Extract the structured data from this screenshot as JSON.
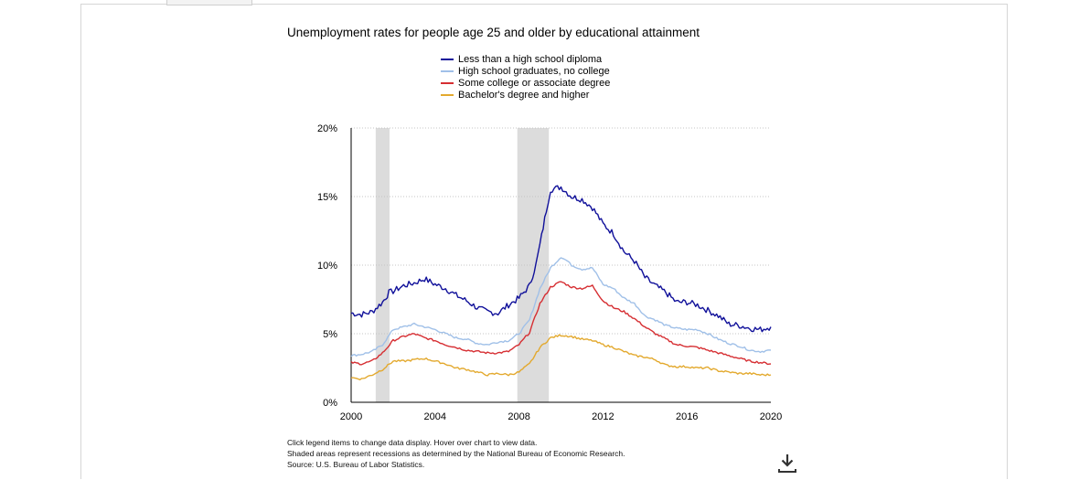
{
  "chart_data": {
    "type": "line",
    "title": "Unemployment rates for people age 25 and older by educational attainment",
    "xlabel": "",
    "ylabel": "",
    "x_ticks": [
      "2000",
      "2004",
      "2008",
      "2012",
      "2016",
      "2020"
    ],
    "y_ticks": [
      "0%",
      "5%",
      "10%",
      "15%",
      "20%"
    ],
    "xlim": [
      2000,
      2020
    ],
    "ylim": [
      0,
      20
    ],
    "grid": "horizontal dotted",
    "legend_position": "top",
    "recessions": [
      [
        2001.17,
        2001.83
      ],
      [
        2007.92,
        2009.42
      ]
    ],
    "series": [
      {
        "name": "Less than a high school diploma",
        "color": "#10109a",
        "points": [
          [
            2000,
            6.5
          ],
          [
            2000.5,
            6.4
          ],
          [
            2001,
            6.6
          ],
          [
            2001.5,
            7.3
          ],
          [
            2001.8,
            8.0
          ],
          [
            2002,
            8.1
          ],
          [
            2002.5,
            8.5
          ],
          [
            2003,
            8.7
          ],
          [
            2003.5,
            9.0
          ],
          [
            2004,
            8.6
          ],
          [
            2004.5,
            8.3
          ],
          [
            2005,
            7.8
          ],
          [
            2005.5,
            7.4
          ],
          [
            2006,
            6.9
          ],
          [
            2006.5,
            6.6
          ],
          [
            2007,
            6.5
          ],
          [
            2007.5,
            7.1
          ],
          [
            2008,
            7.6
          ],
          [
            2008.5,
            8.5
          ],
          [
            2008.8,
            10.0
          ],
          [
            2009,
            11.5
          ],
          [
            2009.3,
            14.0
          ],
          [
            2009.5,
            15.5
          ],
          [
            2010,
            15.7
          ],
          [
            2010.5,
            15.0
          ],
          [
            2011,
            14.8
          ],
          [
            2011.5,
            14.2
          ],
          [
            2012,
            13.0
          ],
          [
            2012.5,
            12.3
          ],
          [
            2013,
            11.0
          ],
          [
            2013.5,
            10.3
          ],
          [
            2014,
            9.1
          ],
          [
            2014.5,
            8.5
          ],
          [
            2015,
            8.0
          ],
          [
            2015.5,
            7.3
          ],
          [
            2016,
            7.3
          ],
          [
            2016.5,
            7.1
          ],
          [
            2017,
            6.7
          ],
          [
            2017.5,
            6.3
          ],
          [
            2018,
            5.7
          ],
          [
            2018.5,
            5.6
          ],
          [
            2019,
            5.4
          ],
          [
            2019.5,
            5.3
          ],
          [
            2020,
            5.5
          ]
        ]
      },
      {
        "name": "High school graduates, no college",
        "color": "#a0c0e8",
        "points": [
          [
            2000,
            3.4
          ],
          [
            2000.5,
            3.5
          ],
          [
            2001,
            3.7
          ],
          [
            2001.5,
            4.2
          ],
          [
            2002,
            5.3
          ],
          [
            2002.5,
            5.5
          ],
          [
            2003,
            5.7
          ],
          [
            2003.5,
            5.5
          ],
          [
            2004,
            5.3
          ],
          [
            2004.5,
            5.0
          ],
          [
            2005,
            4.7
          ],
          [
            2005.5,
            4.6
          ],
          [
            2006,
            4.3
          ],
          [
            2006.5,
            4.2
          ],
          [
            2007,
            4.4
          ],
          [
            2007.5,
            4.5
          ],
          [
            2008,
            5.0
          ],
          [
            2008.5,
            6.0
          ],
          [
            2009,
            8.3
          ],
          [
            2009.5,
            9.8
          ],
          [
            2010,
            10.6
          ],
          [
            2010.3,
            10.3
          ],
          [
            2010.5,
            10.0
          ],
          [
            2011,
            9.7
          ],
          [
            2011.5,
            9.8
          ],
          [
            2012,
            8.6
          ],
          [
            2012.5,
            8.3
          ],
          [
            2013,
            7.6
          ],
          [
            2013.5,
            7.2
          ],
          [
            2014,
            6.3
          ],
          [
            2014.5,
            6.0
          ],
          [
            2015,
            5.6
          ],
          [
            2015.5,
            5.4
          ],
          [
            2016,
            5.3
          ],
          [
            2016.5,
            5.3
          ],
          [
            2017,
            5.0
          ],
          [
            2017.5,
            4.6
          ],
          [
            2018,
            4.3
          ],
          [
            2018.5,
            4.1
          ],
          [
            2019,
            3.8
          ],
          [
            2019.5,
            3.7
          ],
          [
            2020,
            3.8
          ]
        ]
      },
      {
        "name": "Some college or associate degree",
        "color": "#d62e32",
        "points": [
          [
            2000,
            2.9
          ],
          [
            2000.5,
            2.8
          ],
          [
            2001,
            3.0
          ],
          [
            2001.5,
            3.6
          ],
          [
            2002,
            4.5
          ],
          [
            2002.5,
            4.8
          ],
          [
            2003,
            5.0
          ],
          [
            2003.5,
            4.7
          ],
          [
            2004,
            4.5
          ],
          [
            2004.5,
            4.2
          ],
          [
            2005,
            4.0
          ],
          [
            2005.5,
            3.8
          ],
          [
            2006,
            3.7
          ],
          [
            2006.5,
            3.6
          ],
          [
            2007,
            3.6
          ],
          [
            2007.5,
            3.7
          ],
          [
            2008,
            4.2
          ],
          [
            2008.5,
            5.1
          ],
          [
            2009,
            7.2
          ],
          [
            2009.5,
            8.4
          ],
          [
            2010,
            8.8
          ],
          [
            2010.5,
            8.4
          ],
          [
            2011,
            8.3
          ],
          [
            2011.5,
            8.5
          ],
          [
            2012,
            7.4
          ],
          [
            2012.5,
            6.9
          ],
          [
            2013,
            6.6
          ],
          [
            2013.5,
            6.1
          ],
          [
            2014,
            5.5
          ],
          [
            2014.5,
            5.0
          ],
          [
            2015,
            4.6
          ],
          [
            2015.5,
            4.2
          ],
          [
            2016,
            4.1
          ],
          [
            2016.5,
            4.0
          ],
          [
            2017,
            3.8
          ],
          [
            2017.5,
            3.6
          ],
          [
            2018,
            3.4
          ],
          [
            2018.5,
            3.2
          ],
          [
            2019,
            3.0
          ],
          [
            2019.5,
            2.9
          ],
          [
            2020,
            2.8
          ]
        ]
      },
      {
        "name": "Bachelor's degree and higher",
        "color": "#e3a92e",
        "points": [
          [
            2000,
            1.8
          ],
          [
            2000.5,
            1.7
          ],
          [
            2001,
            2.0
          ],
          [
            2001.5,
            2.4
          ],
          [
            2002,
            3.0
          ],
          [
            2002.5,
            3.0
          ],
          [
            2003,
            3.1
          ],
          [
            2003.5,
            3.2
          ],
          [
            2004,
            3.0
          ],
          [
            2004.5,
            2.8
          ],
          [
            2005,
            2.5
          ],
          [
            2005.5,
            2.4
          ],
          [
            2006,
            2.2
          ],
          [
            2006.5,
            2.0
          ],
          [
            2007,
            2.1
          ],
          [
            2007.5,
            2.0
          ],
          [
            2008,
            2.2
          ],
          [
            2008.5,
            2.8
          ],
          [
            2009,
            4.0
          ],
          [
            2009.5,
            4.7
          ],
          [
            2010,
            4.9
          ],
          [
            2010.5,
            4.8
          ],
          [
            2011,
            4.6
          ],
          [
            2011.5,
            4.5
          ],
          [
            2012,
            4.2
          ],
          [
            2012.5,
            4.0
          ],
          [
            2013,
            3.7
          ],
          [
            2013.5,
            3.4
          ],
          [
            2014,
            3.3
          ],
          [
            2014.5,
            3.1
          ],
          [
            2015,
            2.7
          ],
          [
            2015.5,
            2.6
          ],
          [
            2016,
            2.6
          ],
          [
            2016.5,
            2.5
          ],
          [
            2017,
            2.5
          ],
          [
            2017.5,
            2.3
          ],
          [
            2018,
            2.2
          ],
          [
            2018.5,
            2.1
          ],
          [
            2019,
            2.1
          ],
          [
            2019.5,
            2.0
          ],
          [
            2020,
            2.0
          ]
        ]
      }
    ]
  },
  "notes": {
    "line1": "Click legend items to change data display. Hover over chart to view data.",
    "line2": "Shaded areas represent recessions as determined by the National Bureau of Economic Research.",
    "line3": "Source: U.S. Bureau of Labor Statistics."
  },
  "icons": {
    "download": "download-icon"
  }
}
